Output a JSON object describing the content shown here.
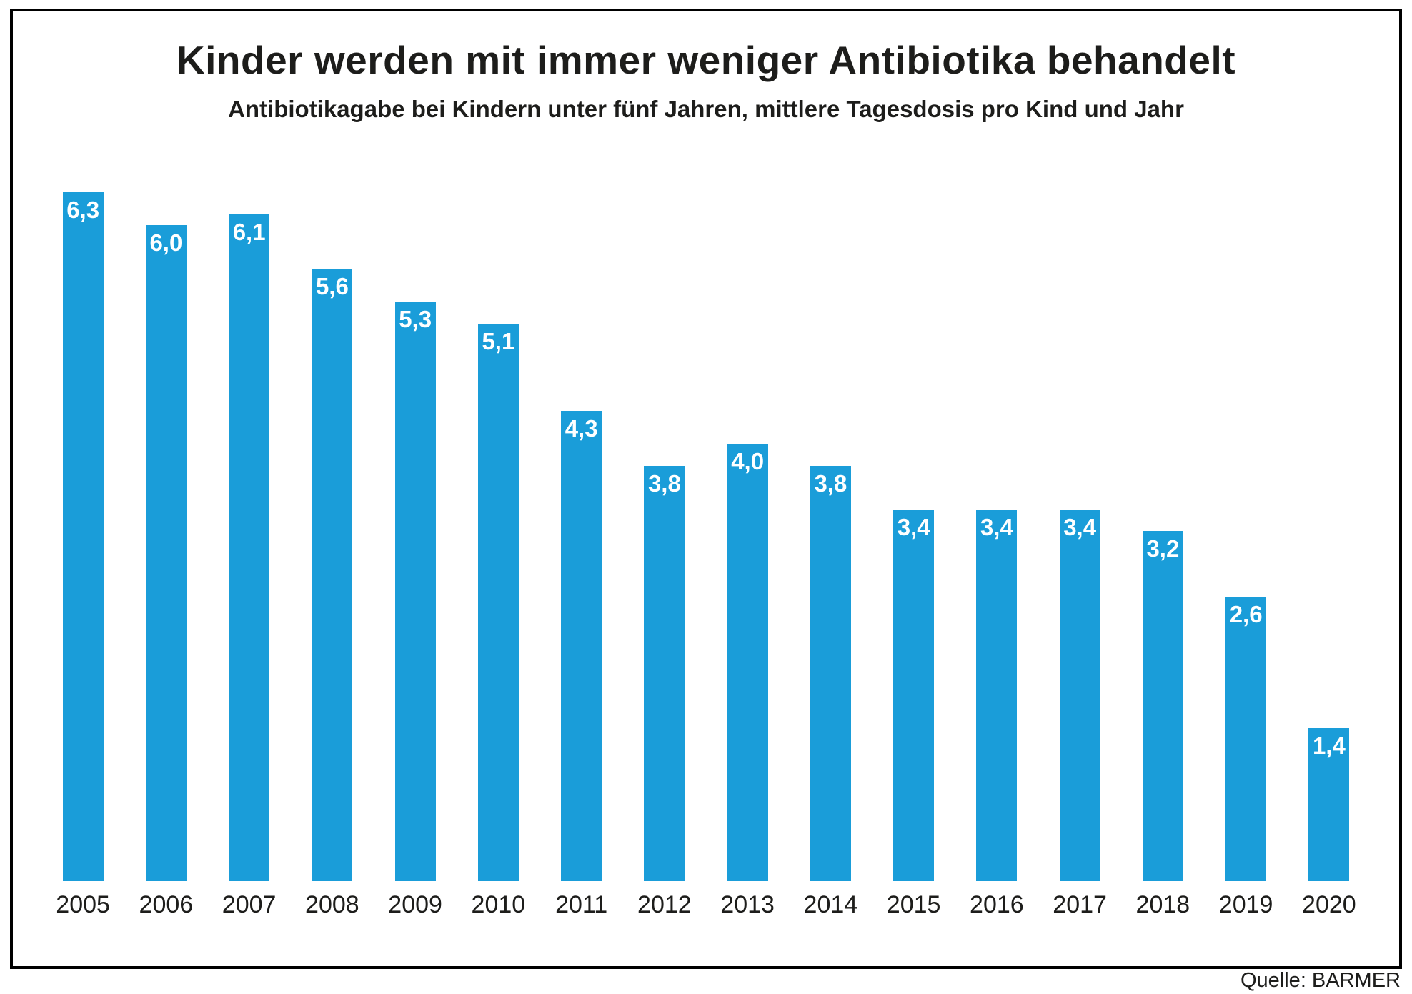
{
  "header": {
    "title": "Kinder werden mit immer weniger Antibiotika behandelt",
    "subtitle": "Antibiotikagabe bei Kindern unter fünf Jahren, mittlere Tagesdosis pro Kind und Jahr"
  },
  "source_label": "Quelle: BARMER",
  "colors": {
    "bar": "#1a9dd9",
    "text": "#1d1d1b",
    "value_label": "#ffffff",
    "border": "#000000",
    "background": "#ffffff"
  },
  "chart_data": {
    "type": "bar",
    "title": "Kinder werden mit immer weniger Antibiotika behandelt",
    "subtitle": "Antibiotikagabe bei Kindern unter fünf Jahren, mittlere Tagesdosis pro Kind und Jahr",
    "categories": [
      "2005",
      "2006",
      "2007",
      "2008",
      "2009",
      "2010",
      "2011",
      "2012",
      "2013",
      "2014",
      "2015",
      "2016",
      "2017",
      "2018",
      "2019",
      "2020"
    ],
    "values": [
      6.3,
      6.0,
      6.1,
      5.6,
      5.3,
      5.1,
      4.3,
      3.8,
      4.0,
      3.8,
      3.4,
      3.4,
      3.4,
      3.2,
      2.6,
      1.4
    ],
    "value_labels": [
      "6,3",
      "6,0",
      "6,1",
      "5,6",
      "5,3",
      "5,1",
      "4,3",
      "3,8",
      "4,0",
      "3,8",
      "3,4",
      "3,4",
      "3,4",
      "3,2",
      "2,6",
      "1,4"
    ],
    "xlabel": "",
    "ylabel": "",
    "ylim": [
      0,
      6.5
    ],
    "grid": false,
    "legend": false,
    "value_label_position": "inside-top",
    "source": "Quelle: BARMER"
  }
}
